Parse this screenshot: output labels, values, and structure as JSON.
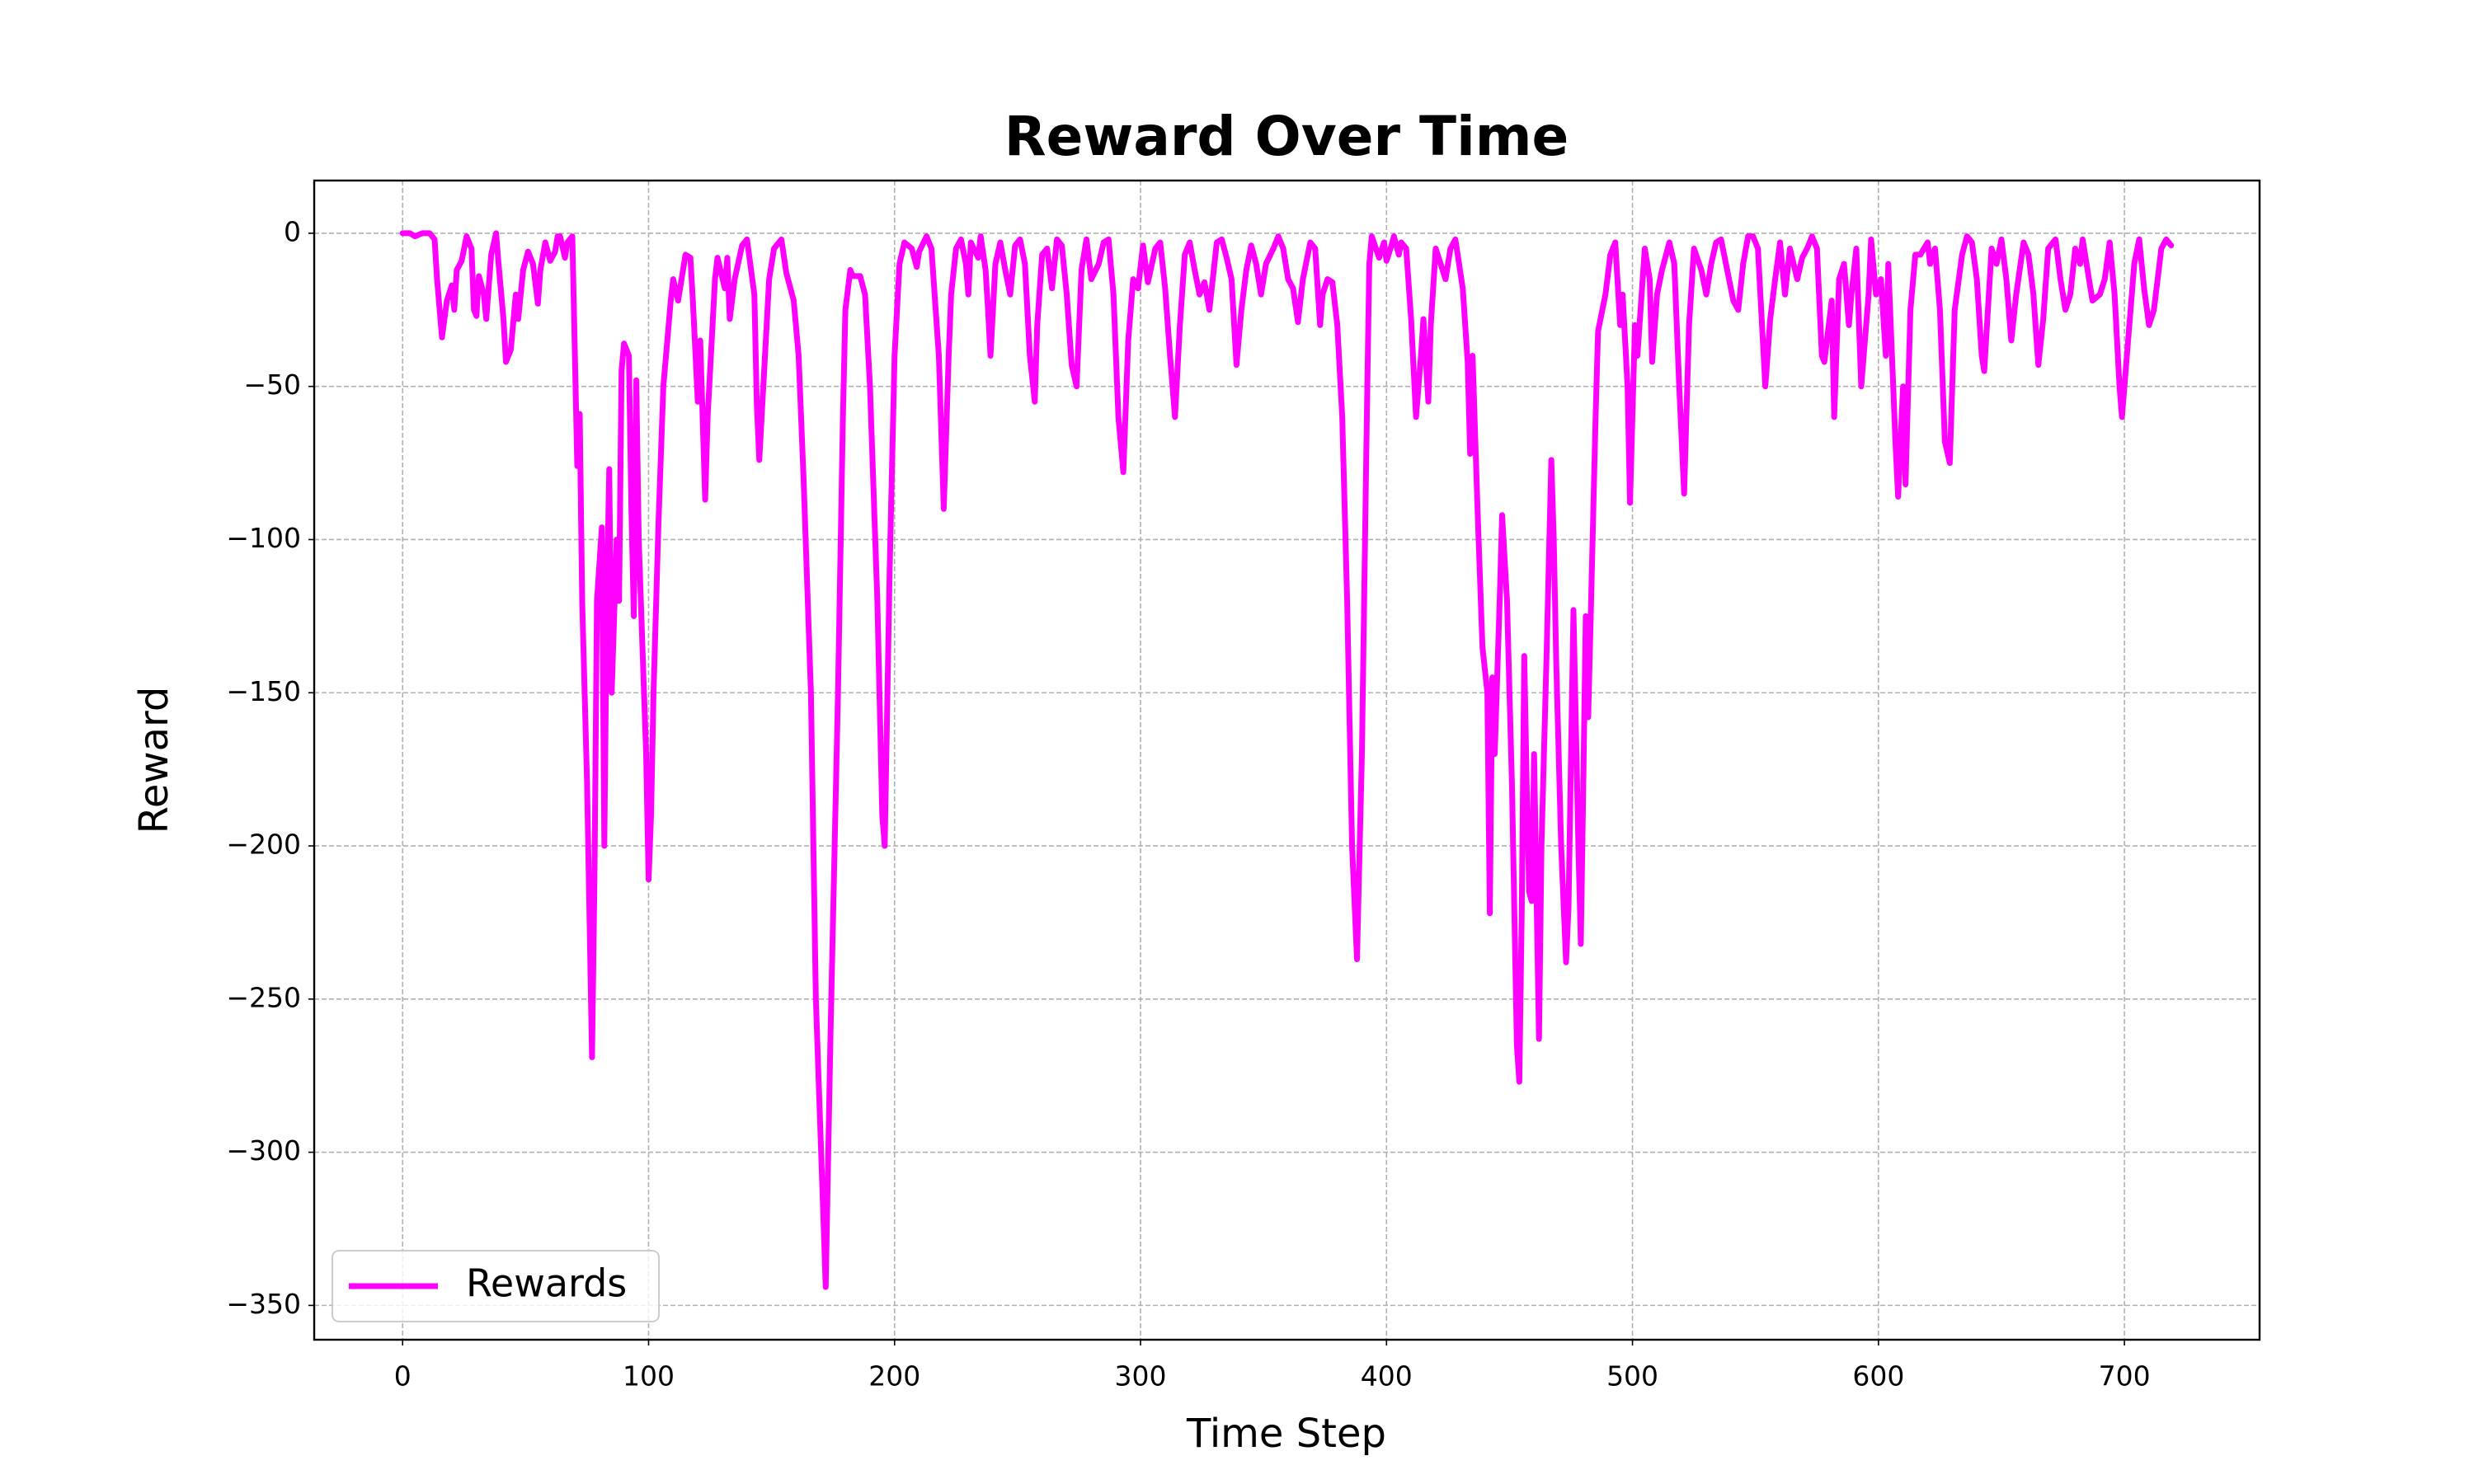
{
  "chart_data": {
    "type": "line",
    "title": "Reward Over Time",
    "x_label": "Time Step",
    "y_label": "Reward",
    "xlim": [
      -35.95,
      754.95
    ],
    "ylim": [
      -361.2,
      17.2
    ],
    "xticks": [
      0,
      100,
      200,
      300,
      400,
      500,
      600,
      700
    ],
    "yticks": [
      {
        "value": -350,
        "label": "−350"
      },
      {
        "value": -300,
        "label": "−300"
      },
      {
        "value": -250,
        "label": "−250"
      },
      {
        "value": -200,
        "label": "−200"
      },
      {
        "value": -150,
        "label": "−150"
      },
      {
        "value": -100,
        "label": "−100"
      },
      {
        "value": -50,
        "label": "−50"
      },
      0
    ],
    "grid": true,
    "legend": "lower left",
    "x": [
      0,
      3,
      5,
      8,
      11,
      13,
      14,
      16,
      18,
      20,
      21,
      22,
      24,
      26,
      28,
      29,
      30,
      31,
      33,
      34,
      36,
      38,
      39,
      41,
      42,
      44,
      46,
      47,
      49,
      51,
      53,
      55,
      56,
      58,
      60,
      62,
      63,
      64,
      66,
      67,
      69,
      71,
      72,
      73,
      75,
      77,
      78,
      79,
      81,
      82,
      83,
      84,
      85,
      87,
      88,
      89,
      90,
      92,
      93,
      94,
      95,
      96,
      99,
      100,
      101,
      102,
      104,
      106,
      109,
      110,
      112,
      115,
      117,
      118,
      120,
      121,
      123,
      124,
      127,
      128,
      131,
      132,
      133,
      135,
      138,
      140,
      143,
      144,
      145,
      148,
      149,
      151,
      154,
      156,
      159,
      161,
      163,
      166,
      168,
      171,
      172,
      174,
      177,
      179,
      180,
      182,
      183,
      186,
      188,
      190,
      193,
      195,
      196,
      198,
      200,
      202,
      204,
      207,
      209,
      210,
      213,
      215,
      218,
      220,
      222,
      223,
      225,
      227,
      229,
      230,
      231,
      234,
      235,
      237,
      238,
      239,
      241,
      243,
      245,
      247,
      249,
      251,
      253,
      255,
      257,
      258,
      260,
      262,
      264,
      266,
      268,
      270,
      272,
      274,
      276,
      278,
      280,
      283,
      285,
      287,
      289,
      291,
      293,
      295,
      297,
      299,
      301,
      303,
      306,
      308,
      310,
      312,
      314,
      316,
      318,
      320,
      322,
      324,
      326,
      328,
      331,
      333,
      335,
      337,
      339,
      341,
      343,
      345,
      347,
      349,
      351,
      354,
      356,
      358,
      360,
      362,
      364,
      366,
      369,
      371,
      373,
      374,
      376,
      378,
      380,
      382,
      384,
      386,
      388,
      390,
      392,
      393,
      394,
      397,
      399,
      400,
      402,
      403,
      405,
      406,
      408,
      410,
      412,
      414,
      415,
      417,
      418,
      420,
      422,
      424,
      426,
      428,
      431,
      433,
      434,
      435,
      437,
      439,
      441,
      442,
      443,
      444,
      446,
      447,
      449,
      451,
      453,
      454,
      455,
      456,
      457,
      458,
      459,
      460,
      462,
      463,
      465,
      467,
      468,
      469,
      471,
      473,
      474,
      476,
      478,
      479,
      480,
      481,
      482,
      483,
      485,
      486,
      489,
      491,
      493,
      495,
      496,
      498,
      499,
      501,
      502,
      505,
      507,
      508,
      510,
      512,
      515,
      517,
      519,
      521,
      523,
      525,
      528,
      530,
      532,
      534,
      536,
      538,
      541,
      543,
      545,
      547,
      549,
      551,
      554,
      556,
      558,
      560,
      562,
      564,
      567,
      569,
      571,
      573,
      575,
      577,
      578,
      581,
      582,
      584,
      586,
      588,
      589,
      591,
      593,
      596,
      597,
      599,
      601,
      603,
      604,
      607,
      608,
      610,
      611,
      613,
      615,
      617,
      620,
      621,
      623,
      625,
      627,
      629,
      631,
      634,
      636,
      638,
      640,
      642,
      643,
      646,
      648,
      650,
      652,
      654,
      656,
      659,
      661,
      663,
      665,
      667,
      669,
      672,
      674,
      676,
      678,
      680,
      682,
      683,
      685,
      687,
      690,
      692,
      694,
      696,
      698,
      699,
      702,
      704,
      706,
      708,
      710,
      712,
      715,
      717,
      719
    ],
    "series": [
      {
        "name": "Rewards",
        "color": "#ff00ff",
        "values": [
          0,
          0,
          -1,
          0,
          0,
          -2,
          -15,
          -34,
          -22,
          -17,
          -25,
          -12,
          -9,
          -1,
          -5,
          -25,
          -27,
          -14,
          -20,
          -28,
          -7,
          0,
          -10,
          -28,
          -42,
          -38,
          -20,
          -28,
          -12,
          -6,
          -10,
          -23,
          -12,
          -3,
          -9,
          -6,
          -1,
          -1,
          -8,
          -3,
          -1,
          -76,
          -59,
          -120,
          -180,
          -269,
          -210,
          -120,
          -96,
          -200,
          -120,
          -77,
          -150,
          -100,
          -120,
          -45,
          -36,
          -40,
          -90,
          -125,
          -48,
          -100,
          -170,
          -211,
          -190,
          -150,
          -95,
          -50,
          -22,
          -15,
          -22,
          -7,
          -8,
          -22,
          -55,
          -35,
          -87,
          -60,
          -15,
          -8,
          -18,
          -8,
          -28,
          -15,
          -4,
          -2,
          -20,
          -56,
          -74,
          -30,
          -15,
          -5,
          -2,
          -13,
          -22,
          -40,
          -80,
          -150,
          -250,
          -320,
          -344,
          -260,
          -150,
          -60,
          -25,
          -12,
          -14,
          -14,
          -20,
          -50,
          -120,
          -190,
          -200,
          -110,
          -40,
          -10,
          -3,
          -5,
          -11,
          -6,
          -1,
          -5,
          -40,
          -90,
          -40,
          -20,
          -5,
          -2,
          -10,
          -20,
          -3,
          -8,
          -1,
          -12,
          -25,
          -40,
          -10,
          -3,
          -12,
          -20,
          -4,
          -2,
          -10,
          -40,
          -55,
          -30,
          -7,
          -5,
          -18,
          -2,
          -4,
          -20,
          -43,
          -50,
          -12,
          -2,
          -15,
          -10,
          -3,
          -2,
          -20,
          -60,
          -78,
          -35,
          -15,
          -18,
          -4,
          -16,
          -5,
          -3,
          -18,
          -40,
          -60,
          -30,
          -7,
          -3,
          -12,
          -20,
          -16,
          -25,
          -3,
          -2,
          -8,
          -15,
          -43,
          -25,
          -12,
          -4,
          -10,
          -20,
          -10,
          -5,
          -1,
          -5,
          -15,
          -18,
          -29,
          -15,
          -3,
          -5,
          -30,
          -20,
          -15,
          -16,
          -30,
          -60,
          -120,
          -200,
          -237,
          -170,
          -60,
          -10,
          -1,
          -8,
          -3,
          -9,
          -4,
          -1,
          -7,
          -3,
          -5,
          -28,
          -60,
          -40,
          -28,
          -55,
          -30,
          -5,
          -10,
          -15,
          -5,
          -2,
          -18,
          -42,
          -72,
          -40,
          -90,
          -135,
          -150,
          -222,
          -145,
          -170,
          -120,
          -92,
          -120,
          -180,
          -265,
          -277,
          -220,
          -138,
          -180,
          -215,
          -218,
          -170,
          -263,
          -200,
          -140,
          -74,
          -100,
          -140,
          -200,
          -238,
          -220,
          -123,
          -200,
          -232,
          -180,
          -125,
          -158,
          -126,
          -60,
          -32,
          -20,
          -7,
          -3,
          -30,
          -20,
          -50,
          -88,
          -30,
          -40,
          -5,
          -15,
          -42,
          -20,
          -12,
          -3,
          -10,
          -50,
          -85,
          -30,
          -5,
          -12,
          -20,
          -10,
          -3,
          -2,
          -10,
          -22,
          -25,
          -10,
          -1,
          -1,
          -5,
          -50,
          -28,
          -15,
          -3,
          -20,
          -5,
          -15,
          -8,
          -5,
          -1,
          -5,
          -40,
          -42,
          -22,
          -60,
          -15,
          -10,
          -30,
          -20,
          -5,
          -50,
          -20,
          -2,
          -20,
          -15,
          -40,
          -10,
          -70,
          -86,
          -50,
          -82,
          -25,
          -7,
          -7,
          -3,
          -10,
          -5,
          -25,
          -68,
          -75,
          -25,
          -7,
          -1,
          -3,
          -15,
          -40,
          -45,
          -5,
          -10,
          -2,
          -15,
          -35,
          -20,
          -3,
          -7,
          -20,
          -43,
          -28,
          -5,
          -2,
          -15,
          -25,
          -20,
          -5,
          -10,
          -2,
          -12,
          -22,
          -20,
          -15,
          -3,
          -20,
          -50,
          -60,
          -30,
          -10,
          -2,
          -18,
          -30,
          -25,
          -5,
          -2,
          -4
        ]
      }
    ]
  }
}
